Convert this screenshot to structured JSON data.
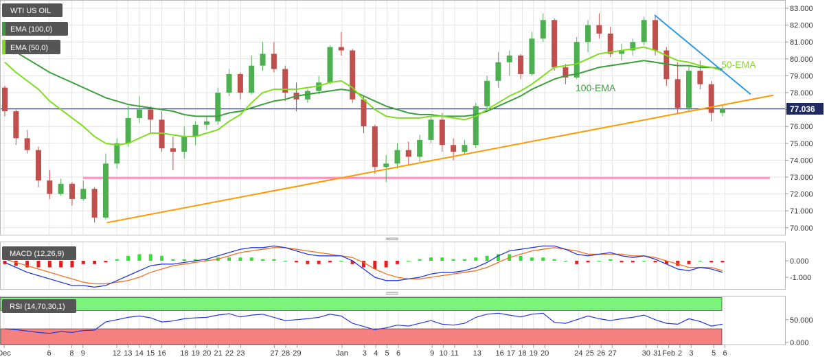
{
  "colors": {
    "bull": "#4caf50",
    "bear": "#c0504d",
    "ema50": "#7fdd1e",
    "ema100": "#3c9e3c",
    "trend_support": "#ff9900",
    "trend_resistance": "#2a9ae6",
    "horizontal": "#ff8fc0",
    "price_line": "#1f2a60",
    "macd": "#2338d6",
    "signal": "#f07020",
    "hist_pos": "#33e033",
    "hist_neg": "#e02020",
    "rsi": "#2338d6",
    "rsi_overbought": "#7cf57c",
    "rsi_oversold": "#f58080",
    "grid": "#e4e4e4"
  },
  "legend": {
    "symbol": "WTI US OIL",
    "ema100": "EMA (100,0)",
    "ema50": "EMA (50,0)",
    "macd": "MACD (12,26,9)",
    "rsi": "RSI (14,70,30,1)"
  },
  "annotations": {
    "ema50_label": "50-EMA",
    "ema100_label": "100-EMA",
    "last_price": "77.036"
  },
  "chart_data": {
    "type": "candlestick",
    "price_axis": {
      "ticks": [
        "83.000",
        "82.000",
        "81.000",
        "80.000",
        "79.000",
        "78.000",
        "77.000",
        "76.000",
        "75.000",
        "74.000",
        "73.000",
        "72.000",
        "71.000",
        "70.000"
      ],
      "ylim": [
        69.6,
        83.4
      ]
    },
    "x_axis": {
      "labels": [
        {
          "label": "Dec",
          "day": 0
        },
        {
          "label": "6",
          "day": 4
        },
        {
          "label": "8",
          "day": 6
        },
        {
          "label": "9",
          "day": 7
        },
        {
          "label": "12",
          "day": 10
        },
        {
          "label": "13",
          "day": 11
        },
        {
          "label": "14",
          "day": 12
        },
        {
          "label": "15",
          "day": 13
        },
        {
          "label": "16",
          "day": 14
        },
        {
          "label": "18",
          "day": 16
        },
        {
          "label": "19",
          "day": 17
        },
        {
          "label": "20",
          "day": 18
        },
        {
          "label": "21",
          "day": 19
        },
        {
          "label": "22",
          "day": 20
        },
        {
          "label": "23",
          "day": 21
        },
        {
          "label": "27",
          "day": 24
        },
        {
          "label": "28",
          "day": 25
        },
        {
          "label": "29",
          "day": 26
        },
        {
          "label": "Jan",
          "day": 30
        },
        {
          "label": "3",
          "day": 32
        },
        {
          "label": "4",
          "day": 33
        },
        {
          "label": "5",
          "day": 34
        },
        {
          "label": "6",
          "day": 35
        },
        {
          "label": "9",
          "day": 38
        },
        {
          "label": "10",
          "day": 39
        },
        {
          "label": "11",
          "day": 40
        },
        {
          "label": "13",
          "day": 42
        },
        {
          "label": "16",
          "day": 44
        },
        {
          "label": "17",
          "day": 45
        },
        {
          "label": "18",
          "day": 46
        },
        {
          "label": "19",
          "day": 47
        },
        {
          "label": "20",
          "day": 48
        },
        {
          "label": "24",
          "day": 51
        },
        {
          "label": "25",
          "day": 52
        },
        {
          "label": "26",
          "day": 53
        },
        {
          "label": "27",
          "day": 54
        },
        {
          "label": "30",
          "day": 57
        },
        {
          "label": "31",
          "day": 58
        },
        {
          "label": "Feb",
          "day": 59
        },
        {
          "label": "2",
          "day": 60
        },
        {
          "label": "3",
          "day": 61
        },
        {
          "label": "5",
          "day": 63
        },
        {
          "label": "6",
          "day": 64
        }
      ]
    },
    "candles": [
      {
        "o": 78.3,
        "h": 78.4,
        "l": 76.6,
        "c": 76.9
      },
      {
        "o": 76.9,
        "h": 77.0,
        "l": 74.9,
        "c": 75.3
      },
      {
        "o": 75.3,
        "h": 75.8,
        "l": 74.4,
        "c": 74.6
      },
      {
        "o": 74.6,
        "h": 74.8,
        "l": 72.4,
        "c": 72.8
      },
      {
        "o": 72.8,
        "h": 73.4,
        "l": 71.7,
        "c": 72.0
      },
      {
        "o": 72.0,
        "h": 72.9,
        "l": 71.9,
        "c": 72.6
      },
      {
        "o": 72.6,
        "h": 72.7,
        "l": 71.3,
        "c": 71.7
      },
      {
        "o": 71.7,
        "h": 72.8,
        "l": 71.6,
        "c": 72.3
      },
      {
        "o": 72.3,
        "h": 72.4,
        "l": 70.3,
        "c": 70.6
      },
      {
        "o": 70.6,
        "h": 74.4,
        "l": 70.5,
        "c": 73.8
      },
      {
        "o": 73.8,
        "h": 75.3,
        "l": 73.5,
        "c": 75.0
      },
      {
        "o": 75.0,
        "h": 77.2,
        "l": 74.8,
        "c": 76.5
      },
      {
        "o": 76.5,
        "h": 77.8,
        "l": 76.2,
        "c": 77.0
      },
      {
        "o": 77.0,
        "h": 77.2,
        "l": 75.6,
        "c": 76.4
      },
      {
        "o": 76.4,
        "h": 76.9,
        "l": 74.5,
        "c": 74.7
      },
      {
        "o": 74.7,
        "h": 75.4,
        "l": 73.4,
        "c": 74.5
      },
      {
        "o": 74.5,
        "h": 76.0,
        "l": 74.1,
        "c": 75.4
      },
      {
        "o": 75.4,
        "h": 76.3,
        "l": 74.9,
        "c": 76.1
      },
      {
        "o": 76.1,
        "h": 76.6,
        "l": 75.8,
        "c": 76.3
      },
      {
        "o": 76.3,
        "h": 78.3,
        "l": 76.1,
        "c": 78.0
      },
      {
        "o": 78.0,
        "h": 79.4,
        "l": 77.8,
        "c": 79.1
      },
      {
        "o": 79.1,
        "h": 79.2,
        "l": 77.6,
        "c": 78.0
      },
      {
        "o": 78.0,
        "h": 80.2,
        "l": 77.9,
        "c": 79.6
      },
      {
        "o": 79.6,
        "h": 81.0,
        "l": 79.3,
        "c": 80.3
      },
      {
        "o": 80.3,
        "h": 81.0,
        "l": 79.2,
        "c": 79.4
      },
      {
        "o": 79.4,
        "h": 79.6,
        "l": 77.5,
        "c": 78.0
      },
      {
        "o": 78.0,
        "h": 78.6,
        "l": 76.9,
        "c": 77.6
      },
      {
        "o": 77.6,
        "h": 78.2,
        "l": 77.4,
        "c": 78.1
      },
      {
        "o": 78.1,
        "h": 79.0,
        "l": 77.9,
        "c": 78.6
      },
      {
        "o": 78.6,
        "h": 80.8,
        "l": 78.5,
        "c": 80.7
      },
      {
        "o": 80.7,
        "h": 81.6,
        "l": 80.2,
        "c": 80.5
      },
      {
        "o": 80.5,
        "h": 80.6,
        "l": 77.4,
        "c": 77.6
      },
      {
        "o": 77.6,
        "h": 77.8,
        "l": 75.6,
        "c": 76.0
      },
      {
        "o": 76.0,
        "h": 76.1,
        "l": 73.2,
        "c": 73.6
      },
      {
        "o": 73.6,
        "h": 74.3,
        "l": 72.7,
        "c": 73.8
      },
      {
        "o": 73.8,
        "h": 75.0,
        "l": 73.5,
        "c": 74.6
      },
      {
        "o": 74.6,
        "h": 75.1,
        "l": 73.7,
        "c": 74.2
      },
      {
        "o": 74.2,
        "h": 75.5,
        "l": 73.9,
        "c": 75.2
      },
      {
        "o": 75.2,
        "h": 76.6,
        "l": 75.0,
        "c": 76.4
      },
      {
        "o": 76.4,
        "h": 76.8,
        "l": 74.5,
        "c": 74.9
      },
      {
        "o": 74.9,
        "h": 75.3,
        "l": 74.0,
        "c": 74.5
      },
      {
        "o": 74.5,
        "h": 75.2,
        "l": 74.3,
        "c": 74.9
      },
      {
        "o": 74.9,
        "h": 77.4,
        "l": 74.7,
        "c": 77.2
      },
      {
        "o": 77.2,
        "h": 79.0,
        "l": 77.0,
        "c": 78.7
      },
      {
        "o": 78.7,
        "h": 80.4,
        "l": 78.3,
        "c": 79.8
      },
      {
        "o": 79.8,
        "h": 80.5,
        "l": 79.0,
        "c": 80.2
      },
      {
        "o": 80.2,
        "h": 80.3,
        "l": 78.8,
        "c": 79.1
      },
      {
        "o": 79.1,
        "h": 81.6,
        "l": 79.0,
        "c": 81.2
      },
      {
        "o": 81.2,
        "h": 82.7,
        "l": 81.0,
        "c": 82.3
      },
      {
        "o": 82.3,
        "h": 82.4,
        "l": 79.3,
        "c": 79.5
      },
      {
        "o": 79.5,
        "h": 79.7,
        "l": 78.5,
        "c": 78.9
      },
      {
        "o": 78.9,
        "h": 81.3,
        "l": 78.8,
        "c": 81.0
      },
      {
        "o": 81.0,
        "h": 82.3,
        "l": 80.4,
        "c": 82.0
      },
      {
        "o": 82.0,
        "h": 82.7,
        "l": 81.2,
        "c": 81.5
      },
      {
        "o": 81.5,
        "h": 81.9,
        "l": 80.1,
        "c": 80.3
      },
      {
        "o": 80.3,
        "h": 80.9,
        "l": 79.9,
        "c": 80.5
      },
      {
        "o": 80.5,
        "h": 81.2,
        "l": 80.2,
        "c": 81.0
      },
      {
        "o": 81.0,
        "h": 82.5,
        "l": 80.8,
        "c": 82.3
      },
      {
        "o": 82.3,
        "h": 82.6,
        "l": 80.2,
        "c": 80.5
      },
      {
        "o": 80.5,
        "h": 80.7,
        "l": 78.4,
        "c": 78.8
      },
      {
        "o": 78.8,
        "h": 79.8,
        "l": 76.8,
        "c": 77.1
      },
      {
        "o": 77.1,
        "h": 79.6,
        "l": 76.9,
        "c": 79.3
      },
      {
        "o": 79.3,
        "h": 79.9,
        "l": 78.2,
        "c": 78.5
      },
      {
        "o": 78.5,
        "h": 78.7,
        "l": 76.3,
        "c": 76.8
      },
      {
        "o": 76.8,
        "h": 77.3,
        "l": 76.6,
        "c": 77.04
      }
    ],
    "ema50": [
      79.8,
      79.2,
      78.7,
      78.2,
      77.5,
      77.0,
      76.5,
      76.0,
      75.4,
      75.0,
      74.9,
      75.0,
      75.3,
      75.6,
      75.6,
      75.5,
      75.4,
      75.4,
      75.6,
      75.8,
      76.3,
      76.7,
      77.4,
      78.0,
      78.2,
      78.2,
      78.2,
      78.3,
      78.4,
      78.6,
      78.7,
      78.3,
      77.6,
      77.0,
      76.6,
      76.5,
      76.5,
      76.5,
      76.6,
      76.6,
      76.5,
      76.4,
      76.6,
      77.0,
      77.4,
      77.8,
      78.1,
      78.5,
      79.0,
      79.5,
      79.6,
      79.7,
      80.0,
      80.3,
      80.4,
      80.5,
      80.6,
      80.7,
      80.5,
      80.2,
      79.9,
      79.8,
      79.6,
      79.5,
      79.3
    ],
    "ema100": [
      80.8,
      80.4,
      80.0,
      79.6,
      79.2,
      78.9,
      78.6,
      78.3,
      78.0,
      77.7,
      77.5,
      77.3,
      77.2,
      77.1,
      77.0,
      76.9,
      76.7,
      76.6,
      76.6,
      76.6,
      76.8,
      76.9,
      77.1,
      77.3,
      77.5,
      77.6,
      77.8,
      77.9,
      78.0,
      78.1,
      78.2,
      78.1,
      77.8,
      77.5,
      77.2,
      77.0,
      76.8,
      76.7,
      76.7,
      76.6,
      76.6,
      76.6,
      76.7,
      76.9,
      77.2,
      77.5,
      77.8,
      78.2,
      78.5,
      78.8,
      79.0,
      79.1,
      79.3,
      79.5,
      79.6,
      79.7,
      79.8,
      79.9,
      79.8,
      79.7,
      79.6,
      79.6,
      79.5,
      79.5,
      79.4
    ],
    "support_trendline": {
      "from": {
        "day": 9,
        "price": 70.3
      },
      "to": {
        "day": 64,
        "price": 77.3
      }
    },
    "resistance_trendline": {
      "from": {
        "day": 54,
        "price": 82.6
      },
      "to": {
        "day": 62,
        "price": 77.9
      }
    },
    "horizontal_level": {
      "price": 72.95,
      "from_day": 7,
      "to_day": 64
    },
    "last_price_line": 77.04,
    "macd_panel": {
      "ticks": [
        "0.000",
        "-1.000"
      ],
      "ylim": [
        -1.8,
        1.0
      ],
      "macd": [
        -0.1,
        -0.4,
        -0.7,
        -0.9,
        -1.1,
        -1.3,
        -1.5,
        -1.5,
        -1.6,
        -1.5,
        -1.2,
        -0.9,
        -0.6,
        -0.3,
        -0.2,
        -0.2,
        -0.1,
        0.0,
        0.1,
        0.3,
        0.5,
        0.7,
        0.8,
        0.8,
        0.9,
        0.8,
        0.6,
        0.4,
        0.3,
        0.3,
        0.3,
        0.0,
        -0.5,
        -1.0,
        -1.2,
        -1.2,
        -1.1,
        -1.0,
        -0.8,
        -0.7,
        -0.7,
        -0.6,
        -0.4,
        -0.1,
        0.3,
        0.6,
        0.7,
        0.8,
        0.9,
        0.9,
        0.7,
        0.4,
        0.3,
        0.4,
        0.5,
        0.3,
        0.2,
        0.3,
        0.1,
        -0.2,
        -0.5,
        -0.6,
        -0.4,
        -0.5,
        -0.7
      ],
      "signal": [
        0.1,
        -0.1,
        -0.3,
        -0.5,
        -0.7,
        -0.9,
        -1.1,
        -1.3,
        -1.4,
        -1.4,
        -1.3,
        -1.2,
        -1.0,
        -0.7,
        -0.5,
        -0.3,
        -0.2,
        -0.1,
        0.0,
        0.1,
        0.3,
        0.5,
        0.6,
        0.7,
        0.8,
        0.8,
        0.7,
        0.6,
        0.5,
        0.4,
        0.3,
        0.2,
        -0.1,
        -0.5,
        -0.8,
        -1.0,
        -1.1,
        -1.1,
        -1.0,
        -0.9,
        -0.8,
        -0.7,
        -0.6,
        -0.4,
        -0.1,
        0.2,
        0.4,
        0.6,
        0.7,
        0.8,
        0.7,
        0.6,
        0.4,
        0.4,
        0.4,
        0.4,
        0.3,
        0.3,
        0.2,
        0.0,
        -0.2,
        -0.4,
        -0.4,
        -0.4,
        -0.6
      ],
      "hist": [
        -0.2,
        -0.3,
        -0.4,
        -0.4,
        -0.4,
        -0.4,
        -0.4,
        -0.2,
        -0.2,
        -0.1,
        0.1,
        0.3,
        0.4,
        0.4,
        0.3,
        0.1,
        0.1,
        0.1,
        0.1,
        0.2,
        0.2,
        0.2,
        0.2,
        0.1,
        0.1,
        0.0,
        -0.1,
        -0.2,
        -0.2,
        -0.1,
        0.0,
        -0.2,
        -0.4,
        -0.5,
        -0.4,
        -0.2,
        0.0,
        0.1,
        0.2,
        0.2,
        0.1,
        0.1,
        0.2,
        0.3,
        0.4,
        0.4,
        0.3,
        0.2,
        0.2,
        0.1,
        0.0,
        -0.2,
        -0.1,
        0.0,
        0.1,
        -0.1,
        -0.1,
        0.0,
        -0.1,
        -0.2,
        -0.3,
        -0.2,
        0.0,
        -0.1,
        -0.1
      ]
    },
    "rsi_panel": {
      "ticks": [
        "50.000",
        "0.000"
      ],
      "ylim": [
        0,
        100
      ],
      "overbought": 70,
      "oversold": 30,
      "rsi": [
        30,
        28,
        25,
        22,
        20,
        24,
        22,
        26,
        27,
        45,
        50,
        55,
        58,
        54,
        45,
        47,
        52,
        54,
        55,
        60,
        63,
        56,
        60,
        62,
        55,
        48,
        50,
        52,
        55,
        62,
        58,
        42,
        35,
        28,
        32,
        38,
        36,
        42,
        48,
        40,
        38,
        42,
        55,
        62,
        64,
        60,
        56,
        62,
        64,
        44,
        42,
        50,
        58,
        52,
        48,
        52,
        55,
        60,
        50,
        42,
        40,
        52,
        46,
        36,
        40
      ]
    }
  }
}
